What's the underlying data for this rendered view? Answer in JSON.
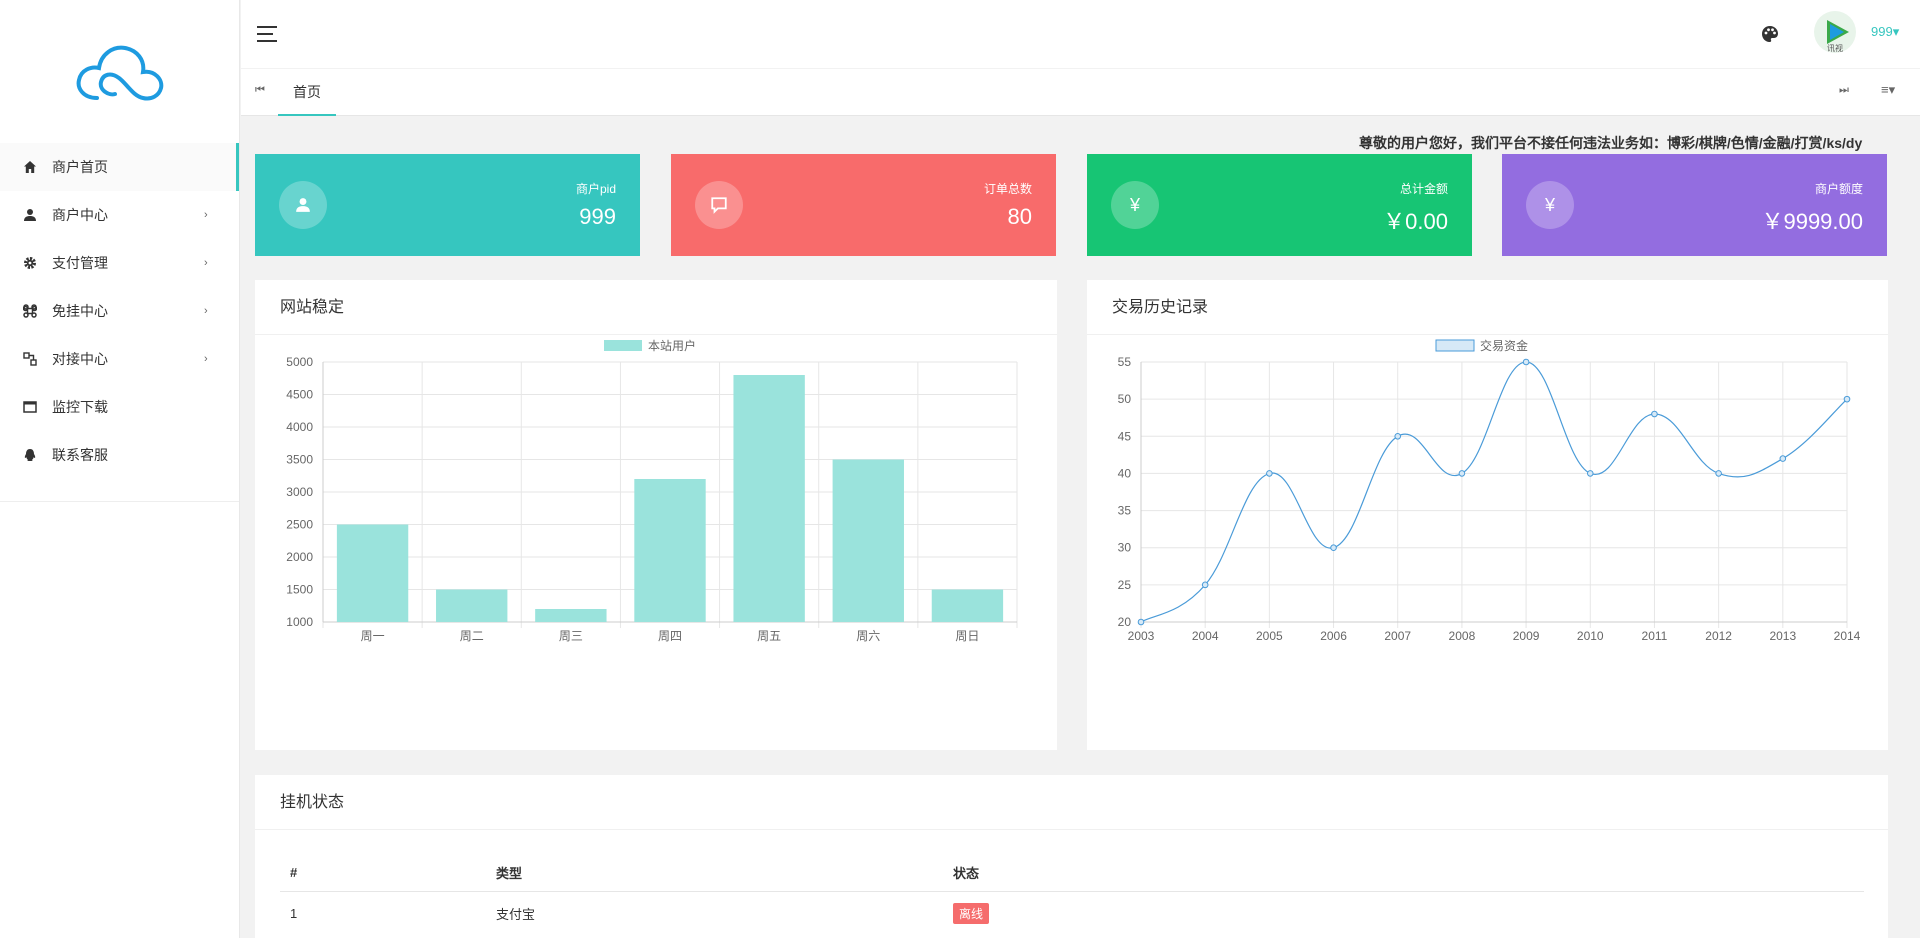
{
  "sidebar": {
    "items": [
      {
        "label": "商户首页",
        "icon": "home-icon",
        "active": true
      },
      {
        "label": "商户中心",
        "icon": "user-icon",
        "has_arrow": true
      },
      {
        "label": "支付管理",
        "icon": "gear-icon",
        "has_arrow": true
      },
      {
        "label": "免挂中心",
        "icon": "command-icon",
        "has_arrow": true
      },
      {
        "label": "对接中心",
        "icon": "connect-icon",
        "has_arrow": true
      },
      {
        "label": "监控下载",
        "icon": "window-icon"
      },
      {
        "label": "联系客服",
        "icon": "qq-icon"
      }
    ]
  },
  "header": {
    "username": "999▾",
    "avatar_text": "讯视"
  },
  "tabs": {
    "home_label": "首页"
  },
  "notice": "尊敬的用户您好，我们平台不接任何违法业务如：博彩/棋牌/色情/金融/打赏/ks/dy",
  "stats": [
    {
      "label": "商户pid",
      "value": "999",
      "icon": "user-icon",
      "color": "#36c6bf"
    },
    {
      "label": "订单总数",
      "value": "80",
      "icon": "comment-icon",
      "color": "#f86b6b"
    },
    {
      "label": "总计金额",
      "value": "￥0.00",
      "icon": "yen-icon",
      "symbol": "¥",
      "color": "#17c574"
    },
    {
      "label": "商户额度",
      "value": "￥9999.00",
      "icon": "yen-icon",
      "symbol": "¥",
      "color": "#936de0"
    }
  ],
  "panels": {
    "site_stable_title": "网站稳定",
    "trade_history_title": "交易历史记录",
    "hangup_title": "挂机状态"
  },
  "chart_data": [
    {
      "type": "bar",
      "title": "",
      "legend": "本站用户",
      "legend_position": "top",
      "categories": [
        "周一",
        "周二",
        "周三",
        "周四",
        "周五",
        "周六",
        "周日"
      ],
      "series": [
        {
          "name": "本站用户",
          "values": [
            2500,
            1500,
            1200,
            3200,
            4800,
            3500,
            1500
          ]
        }
      ],
      "ylim": [
        1000,
        5000
      ],
      "yticks": [
        1000,
        1500,
        2000,
        2500,
        3000,
        3500,
        4000,
        4500,
        5000
      ],
      "grid": true,
      "color": "#9ae3dc"
    },
    {
      "type": "line",
      "title": "",
      "legend": "交易资金",
      "legend_position": "top",
      "x": [
        "2003",
        "2004",
        "2005",
        "2006",
        "2007",
        "2008",
        "2009",
        "2010",
        "2011",
        "2012",
        "2013",
        "2014"
      ],
      "series": [
        {
          "name": "交易资金",
          "values": [
            20,
            25,
            40,
            30,
            45,
            40,
            55,
            40,
            48,
            40,
            42,
            50
          ]
        }
      ],
      "ylim": [
        20,
        55
      ],
      "yticks": [
        20,
        25,
        30,
        35,
        40,
        45,
        50,
        55
      ],
      "grid": true,
      "color": "#4a9bd8"
    }
  ],
  "table": {
    "headers": [
      "#",
      "类型",
      "状态"
    ],
    "rows": [
      {
        "index": "1",
        "type": "支付宝",
        "status": "离线"
      }
    ]
  }
}
